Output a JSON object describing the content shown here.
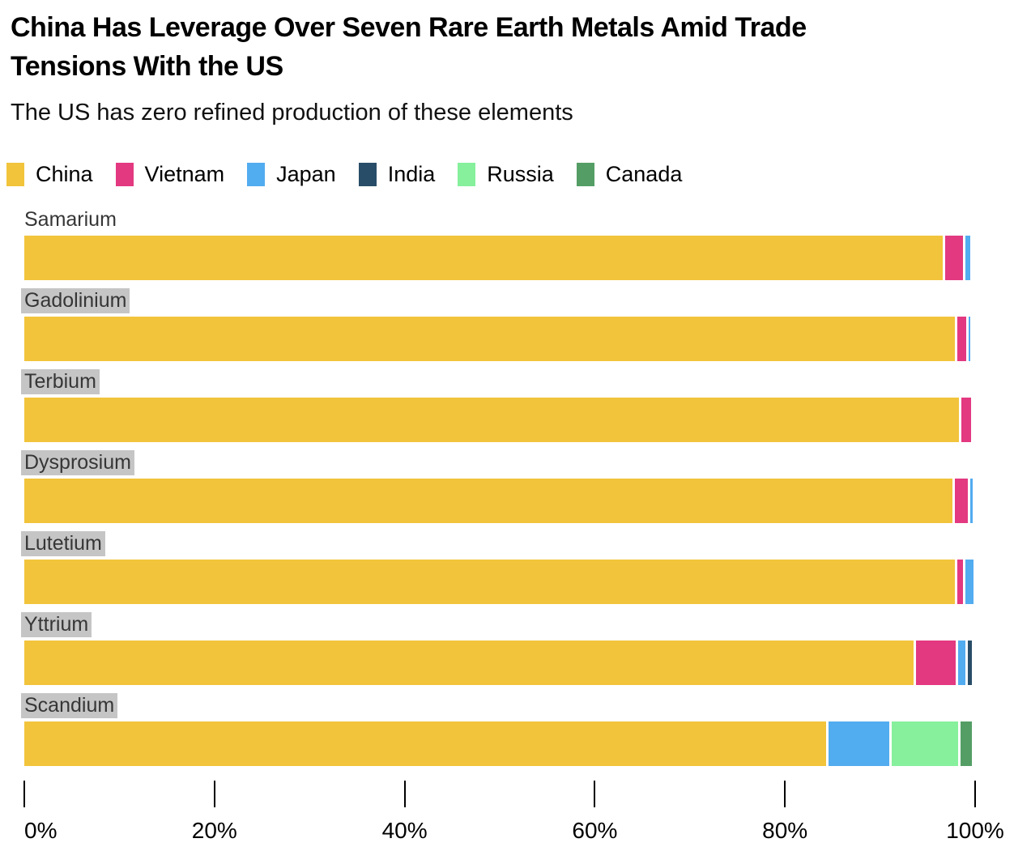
{
  "header": {
    "title": "China Has Leverage Over Seven Rare Earth Metals Amid Trade Tensions With the US",
    "title_lines": [
      "China Has Leverage Over Seven Rare Earth Metals Amid Trade",
      "Tensions With the US"
    ],
    "subtitle": "The US has zero refined production of these elements"
  },
  "chart_data": {
    "type": "bar",
    "orientation": "horizontal",
    "stacked": true,
    "unit": "%",
    "title": "China Has Leverage Over Seven Rare Earth Metals Amid Trade Tensions With the US",
    "subtitle": "The US has zero refined production of these elements",
    "legend_position": "top",
    "grid": false,
    "xlim": [
      0,
      100
    ],
    "x_ticks": [
      {
        "value": 0,
        "label": "0%"
      },
      {
        "value": 20,
        "label": "20%"
      },
      {
        "value": 40,
        "label": "40%"
      },
      {
        "value": 60,
        "label": "60%"
      },
      {
        "value": 80,
        "label": "80%"
      },
      {
        "value": 100,
        "label": "100%"
      }
    ],
    "categories": [
      "Samarium",
      "Gadolinium",
      "Terbium",
      "Dysprosium",
      "Lutetium",
      "Yttrium",
      "Scandium"
    ],
    "category_label_highlighted": [
      false,
      true,
      true,
      true,
      true,
      true,
      true
    ],
    "series": [
      {
        "name": "China",
        "color": "#F2C43C",
        "values": [
          96.6,
          97.9,
          98.3,
          97.6,
          97.9,
          93.5,
          84.3
        ]
      },
      {
        "name": "Vietnam",
        "color": "#E33981",
        "values": [
          1.9,
          0.9,
          1.0,
          1.4,
          0.6,
          4.2,
          0
        ]
      },
      {
        "name": "Japan",
        "color": "#52ACF0",
        "values": [
          0.5,
          0.2,
          0,
          0.2,
          0.8,
          0.8,
          6.4
        ]
      },
      {
        "name": "India",
        "color": "#284D68",
        "values": [
          0,
          0,
          0,
          0,
          0,
          0.4,
          0
        ]
      },
      {
        "name": "Russia",
        "color": "#86F09C",
        "values": [
          0,
          0,
          0,
          0,
          0,
          0,
          7.0
        ]
      },
      {
        "name": "Canada",
        "color": "#549E65",
        "values": [
          0,
          0,
          0,
          0,
          0,
          0,
          1.2
        ]
      }
    ]
  }
}
